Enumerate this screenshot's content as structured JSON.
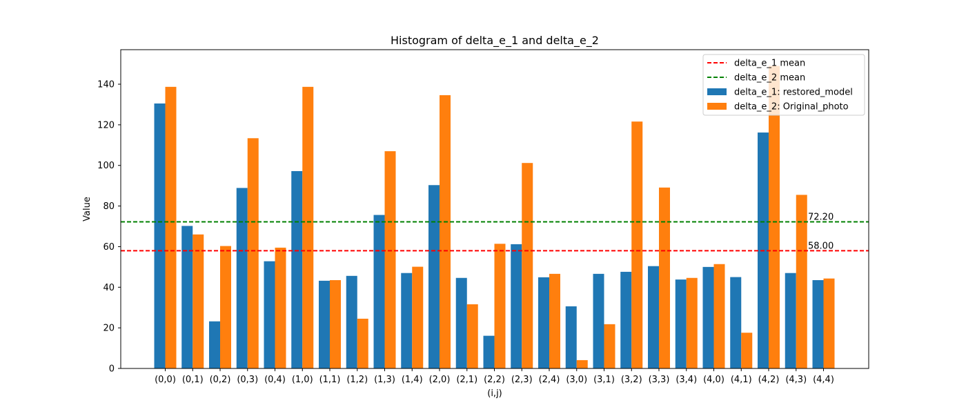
{
  "chart_data": {
    "type": "bar",
    "title": "Histogram of delta_e_1 and delta_e_2",
    "xlabel": "(i,j)",
    "ylabel": "Value",
    "ylim": [
      0,
      157
    ],
    "yticks": [
      0,
      20,
      40,
      60,
      80,
      100,
      120,
      140
    ],
    "categories": [
      "(0,0)",
      "(0,1)",
      "(0,2)",
      "(0,3)",
      "(0,4)",
      "(1,0)",
      "(1,1)",
      "(1,2)",
      "(1,3)",
      "(1,4)",
      "(2,0)",
      "(2,1)",
      "(2,2)",
      "(2,3)",
      "(2,4)",
      "(3,0)",
      "(3,1)",
      "(3,2)",
      "(3,3)",
      "(3,4)",
      "(4,0)",
      "(4,1)",
      "(4,2)",
      "(4,3)",
      "(4,4)"
    ],
    "series": [
      {
        "name": "delta_e_1: restored_model",
        "color": "#1f77b4",
        "values": [
          130.5,
          70.2,
          23.2,
          88.9,
          52.8,
          97.2,
          43.2,
          45.6,
          75.6,
          47.0,
          90.3,
          44.6,
          16.1,
          61.2,
          44.9,
          30.6,
          46.6,
          47.6,
          50.4,
          43.8,
          50.0,
          45.0,
          116.2,
          47.0,
          43.5
        ]
      },
      {
        "name": "delta_e_2: Original_photo",
        "color": "#ff7f0e",
        "values": [
          138.7,
          66.0,
          60.3,
          113.4,
          59.5,
          138.7,
          43.5,
          24.5,
          107.0,
          50.1,
          134.6,
          31.6,
          61.4,
          101.2,
          46.6,
          4.1,
          21.8,
          121.6,
          89.1,
          44.6,
          51.4,
          17.6,
          149.0,
          85.5,
          44.3
        ]
      }
    ],
    "reference_lines": [
      {
        "name": "delta_e_1 mean",
        "value": 58.0,
        "label": "58.00",
        "color": "#ff0000",
        "style": "dashed"
      },
      {
        "name": "delta_e_2 mean",
        "value": 72.2,
        "label": "72.20",
        "color": "#008000",
        "style": "dashed"
      }
    ],
    "legend": {
      "placement": "top-right",
      "entries": [
        "delta_e_1 mean",
        "delta_e_2 mean",
        "delta_e_1: restored_model",
        "delta_e_2: Original_photo"
      ]
    },
    "grid": false
  }
}
